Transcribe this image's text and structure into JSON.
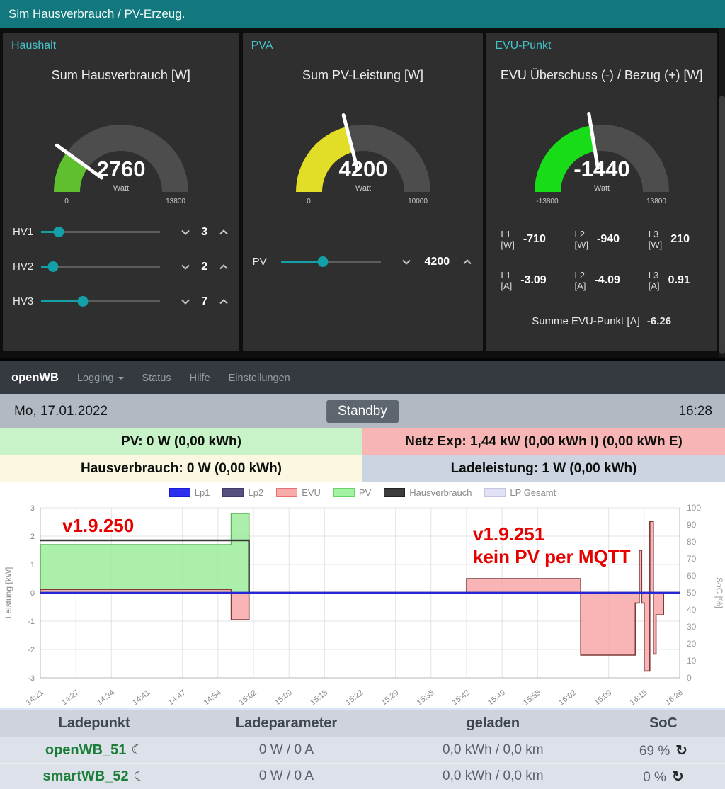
{
  "sim_dashboard": {
    "title": "Sim Hausverbrauch / PV-Erzeug.",
    "colors": {
      "header_bg": "#12787d",
      "accent": "#44c3ca"
    },
    "panels": {
      "haushalt": {
        "title": "Haushalt",
        "gauge": {
          "title": "Sum Hausverbrauch [W]",
          "value": 2760,
          "value_label": "2760",
          "min": 0,
          "max": 13800,
          "min_label": "0",
          "max_label": "13800",
          "unit": "Watt",
          "color": "#5fbf2e"
        },
        "sliders": [
          {
            "label": "HV1",
            "value": "3",
            "fraction": 0.15
          },
          {
            "label": "HV2",
            "value": "2",
            "fraction": 0.1
          },
          {
            "label": "HV3",
            "value": "7",
            "fraction": 0.35
          }
        ]
      },
      "pva": {
        "title": "PVA",
        "gauge": {
          "title": "Sum PV-Leistung [W]",
          "value": 4200,
          "value_label": "4200",
          "min": 0,
          "max": 10000,
          "min_label": "0",
          "max_label": "10000",
          "unit": "Watt",
          "color": "#e2de27"
        },
        "sliders": [
          {
            "label": "PV",
            "value": "4200",
            "fraction": 0.42
          }
        ]
      },
      "evu": {
        "title": "EVU-Punkt",
        "gauge": {
          "title": "EVU Überschuss (-) / Bezug (+) [W]",
          "value": -1440,
          "value_label": "-1440",
          "min": -13800,
          "max": 13800,
          "min_label": "-13800",
          "max_label": "13800",
          "unit": "Watt",
          "color": "#19dc19"
        },
        "phase_rows": [
          [
            {
              "l1": "L1",
              "l2": "[W]",
              "value": "-710"
            },
            {
              "l1": "L2",
              "l2": "[W]",
              "value": "-940"
            },
            {
              "l1": "L3",
              "l2": "[W]",
              "value": "210"
            }
          ],
          [
            {
              "l1": "L1",
              "l2": "[A]",
              "value": "-3.09"
            },
            {
              "l1": "L2",
              "l2": "[A]",
              "value": "-4.09"
            },
            {
              "l1": "L3",
              "l2": "[A]",
              "value": "0.91"
            }
          ]
        ],
        "sum_label": "Summe EVU-Punkt [A]",
        "sum_value": "-6.26"
      }
    }
  },
  "openwb": {
    "navbar": {
      "brand": "openWB",
      "items": [
        {
          "label": "Logging",
          "caret": true
        },
        {
          "label": "Status",
          "caret": false
        },
        {
          "label": "Hilfe",
          "caret": false
        },
        {
          "label": "Einstellungen",
          "caret": false
        }
      ]
    },
    "statusbar": {
      "date": "Mo, 17.01.2022",
      "mode": "Standby",
      "time": "16:28"
    },
    "info_tiles": [
      {
        "id": "pv",
        "text": "PV: 0 W (0,00 kWh)",
        "bg": "#c8f3c8"
      },
      {
        "id": "netz",
        "text": "Netz Exp: 1,44 kW (0,00 kWh I) (0,00 kWh E)",
        "bg": "#f8b5b5"
      },
      {
        "id": "hausverbrauch",
        "text": "Hausverbrauch: 0 W (0,00 kWh)",
        "bg": "#fbf7e0"
      },
      {
        "id": "ladeleistung",
        "text": "Ladeleistung: 1 W (0,00 kWh)",
        "bg": "#ccd3e1"
      }
    ],
    "table": {
      "headers": [
        "Ladepunkt",
        "Ladeparameter",
        "geladen",
        "SoC"
      ],
      "rows": [
        {
          "name": "openWB_51",
          "icon": "moon",
          "ladeparameter": "0 W / 0 A",
          "geladen": "0,0 kWh / 0,0 km",
          "soc": "69 %",
          "soc_refresh": true
        },
        {
          "name": "smartWB_52",
          "icon": "moon",
          "ladeparameter": "0 W / 0 A",
          "geladen": "0,0 kWh / 0,0 km",
          "soc": "0 %",
          "soc_refresh": true
        }
      ]
    }
  },
  "chart_data": {
    "type": "line",
    "x_ticks": [
      "14:21",
      "14:27",
      "14:34",
      "14:41",
      "14:47",
      "14:54",
      "15:02",
      "15:09",
      "15:15",
      "15:22",
      "15:29",
      "15:35",
      "15:42",
      "15:49",
      "15:55",
      "16:02",
      "16:09",
      "16:15",
      "16:26"
    ],
    "ylabel_left": "Leistung [kW]",
    "ylim_left": [
      -3,
      3
    ],
    "y_ticks_left": [
      3,
      2,
      1,
      0,
      -1,
      -2,
      -3
    ],
    "ylabel_right": "SoC [%]",
    "ylim_right": [
      0,
      100
    ],
    "y_ticks_right": [
      100,
      90,
      80,
      70,
      60,
      50,
      40,
      30,
      20,
      10,
      0
    ],
    "grid": true,
    "legend_position": "top",
    "legend": [
      {
        "name": "Lp1",
        "fill": "#2e2eee",
        "border": "#1b1bd0"
      },
      {
        "name": "Lp2",
        "fill": "#55517e",
        "border": "#3f3b68"
      },
      {
        "name": "EVU",
        "fill": "#f9aaaa",
        "border": "#e57373"
      },
      {
        "name": "PV",
        "fill": "#a4f2a4",
        "border": "#68d468"
      },
      {
        "name": "Hausverbrauch",
        "fill": "#3c3c3c",
        "border": "#222222"
      },
      {
        "name": "LP Gesamt",
        "fill": "#e2e2f6",
        "border": "#c4c4e6"
      }
    ],
    "series": [
      {
        "name": "PV",
        "style": "area",
        "fill": "rgba(150,235,150,0.8)",
        "stroke": "#57b657",
        "points": [
          [
            "14:21",
            1.7
          ],
          [
            "14:57",
            1.7
          ],
          [
            "14:57",
            2.8
          ],
          [
            "15:01",
            2.8
          ],
          [
            "15:01",
            0
          ],
          [
            "16:26",
            0
          ]
        ]
      },
      {
        "name": "EVU",
        "style": "area",
        "fill": "rgba(248,168,168,0.85)",
        "stroke": "#7c3a3a",
        "points": [
          [
            "14:21",
            0.12
          ],
          [
            "14:57",
            0.12
          ],
          [
            "14:57",
            -0.95
          ],
          [
            "15:01",
            -0.95
          ],
          [
            "15:01",
            0
          ],
          [
            "15:42",
            0
          ],
          [
            "15:42",
            0.5
          ],
          [
            "16:03:30",
            0.5
          ],
          [
            "16:03:30",
            -2.2
          ],
          [
            "16:13:30",
            -2.2
          ],
          [
            "16:13:30",
            -0.36
          ],
          [
            "16:14:10",
            -0.36
          ],
          [
            "16:14:10",
            1.5
          ],
          [
            "16:14:35",
            1.5
          ],
          [
            "16:14:35",
            -0.36
          ],
          [
            "16:15:00",
            -0.36
          ],
          [
            "16:15:00",
            -2.76
          ],
          [
            "16:16:45",
            -2.76
          ],
          [
            "16:16:45",
            2.52
          ],
          [
            "16:17:50",
            2.52
          ],
          [
            "16:17:50",
            -2.16
          ],
          [
            "16:18:40",
            -2.16
          ],
          [
            "16:18:40",
            -0.78
          ],
          [
            "16:21:00",
            -0.78
          ],
          [
            "16:21:00",
            0
          ],
          [
            "16:26",
            0
          ]
        ]
      },
      {
        "name": "LP Gesamt",
        "style": "line",
        "stroke": "#dcdcf2",
        "points": [
          [
            "14:21",
            0
          ],
          [
            "16:26",
            0
          ]
        ]
      },
      {
        "name": "Lp2",
        "style": "line",
        "stroke": "#4d4a7a",
        "points": [
          [
            "14:21",
            0
          ],
          [
            "16:26",
            0
          ]
        ]
      },
      {
        "name": "Hausverbrauch",
        "style": "line",
        "stroke": "#3a3a3a",
        "points": [
          [
            "14:21",
            1.85
          ],
          [
            "15:01",
            1.85
          ],
          [
            "15:01",
            0
          ],
          [
            "16:26",
            0
          ]
        ]
      },
      {
        "name": "Lp1",
        "style": "line",
        "stroke": "#2626d9",
        "points": [
          [
            "14:21",
            0
          ],
          [
            "16:26",
            0
          ]
        ]
      }
    ],
    "annotations": [
      {
        "text": "v1.9.250",
        "x": 88,
        "y": 46
      },
      {
        "text": "v1.9.251",
        "x": 668,
        "y": 58
      },
      {
        "text": "kein PV per MQTT",
        "x": 668,
        "y": 90
      }
    ]
  }
}
